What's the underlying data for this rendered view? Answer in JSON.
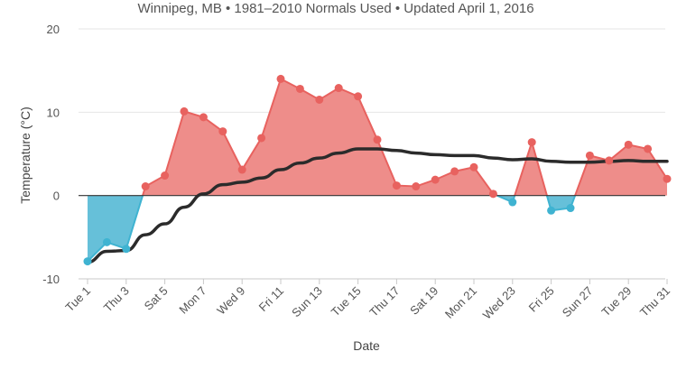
{
  "chart_data": {
    "type": "area",
    "subtitle": "Winnipeg, MB • 1981–2010 Normals Used • Updated April 1, 2016",
    "xlabel": "Date",
    "ylabel": "Temperature (°C)",
    "ylim": [
      -10,
      20
    ],
    "yticks": [
      -10,
      0,
      10,
      20
    ],
    "xlim": [
      1,
      31
    ],
    "xtick_days": [
      1,
      3,
      5,
      7,
      9,
      11,
      13,
      15,
      17,
      19,
      21,
      23,
      25,
      27,
      29,
      31
    ],
    "xtick_labels": [
      "Tue 1",
      "Thu 3",
      "Sat 5",
      "Mon 7",
      "Wed 9",
      "Fri 11",
      "Sun 13",
      "Tue 15",
      "Thu 17",
      "Sat 19",
      "Mon 21",
      "Wed 23",
      "Fri 25",
      "Sun 27",
      "Tue 29",
      "Thu 31"
    ],
    "grid": true,
    "legend": "none",
    "colors": {
      "above": "#e8625f",
      "above_fill": "#ee8d8a",
      "below": "#3fb3d1",
      "below_fill": "#66c0d9",
      "normal_line": "#2b2b2b",
      "grid": "#e6e6e6",
      "zero_line": "#333333"
    },
    "days": [
      1,
      2,
      3,
      4,
      5,
      6,
      7,
      8,
      9,
      10,
      11,
      12,
      13,
      14,
      15,
      16,
      17,
      18,
      19,
      20,
      21,
      22,
      23,
      24,
      25,
      26,
      27,
      28,
      29,
      30,
      31
    ],
    "series": [
      {
        "values": [
          -7.9,
          -5.6,
          -6.4,
          1.1,
          2.4,
          10.1,
          9.4,
          7.7,
          3.1,
          6.9,
          14.0,
          12.8,
          11.5,
          12.9,
          11.9,
          6.7,
          1.2,
          1.1,
          1.9,
          2.9,
          3.4,
          0.2,
          -0.8,
          6.4,
          -1.8,
          -1.5,
          4.8,
          4.2,
          6.1,
          5.6,
          2.0
        ]
      },
      {
        "values": [
          -8.0,
          -6.7,
          -6.6,
          -4.7,
          -3.4,
          -1.4,
          0.2,
          1.3,
          1.6,
          2.1,
          3.1,
          3.9,
          4.5,
          5.1,
          5.6,
          5.6,
          5.4,
          5.1,
          4.9,
          4.8,
          4.8,
          4.5,
          4.3,
          4.4,
          4.1,
          4.0,
          4.0,
          4.1,
          4.2,
          4.1,
          4.1
        ]
      }
    ]
  }
}
